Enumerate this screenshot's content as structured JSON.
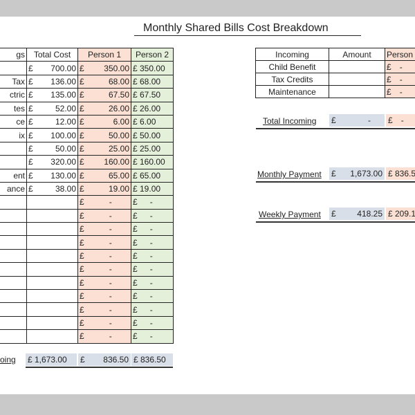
{
  "title": "Monthly Shared Bills Cost Breakdown",
  "currency_symbol": "£",
  "left_table": {
    "headers": [
      "gs",
      "Total Cost",
      "Person 1",
      "Person 2"
    ],
    "rows": [
      {
        "label": "",
        "total": "700.00",
        "p1": "350.00",
        "p2": "£ 350.00"
      },
      {
        "label": "Tax",
        "total": "136.00",
        "p1": "68.00",
        "p2": "£  68.00"
      },
      {
        "label": "ctric",
        "total": "135.00",
        "p1": "67.50",
        "p2": "£  67.50"
      },
      {
        "label": "tes",
        "total": "52.00",
        "p1": "26.00",
        "p2": "£  26.00"
      },
      {
        "label": "ce",
        "total": "12.00",
        "p1": "6.00",
        "p2": "£   6.00"
      },
      {
        "label": "ix",
        "total": "100.00",
        "p1": "50.00",
        "p2": "£  50.00"
      },
      {
        "label": "",
        "total": "50.00",
        "p1": "25.00",
        "p2": "£  25.00"
      },
      {
        "label": "",
        "total": "320.00",
        "p1": "160.00",
        "p2": "£ 160.00"
      },
      {
        "label": "ent",
        "total": "130.00",
        "p1": "65.00",
        "p2": "£  65.00"
      },
      {
        "label": "ance",
        "total": "38.00",
        "p1": "19.00",
        "p2": "£  19.00"
      }
    ],
    "empty_row_count": 11,
    "dash": "-",
    "footer_label": "oing",
    "footer_total": "£  1,673.00",
    "footer_p1": "836.50",
    "footer_p2": "£ 836.50"
  },
  "right_table": {
    "headers": [
      "Incoming",
      "Amount",
      "Person"
    ],
    "rows": [
      {
        "label": "Child Benefit"
      },
      {
        "label": "Tax Credits"
      },
      {
        "label": "Maintenance"
      }
    ],
    "dash": "-"
  },
  "summary": {
    "total_incoming": {
      "label": "Total Incoming",
      "amount": "-",
      "p1": "-"
    },
    "monthly_payment": {
      "label": "Monthly Payment",
      "amount": "1,673.00",
      "p1": "£ 836.5"
    },
    "weekly_payment": {
      "label": "Weekly Payment",
      "amount": "418.25",
      "p1": "£ 209.1"
    }
  },
  "colors": {
    "person1_fill": "#fbe0d3",
    "person2_fill": "#e5f0da",
    "summary_fill": "#d9dfe8",
    "window_bg": "#c9c9c9"
  }
}
